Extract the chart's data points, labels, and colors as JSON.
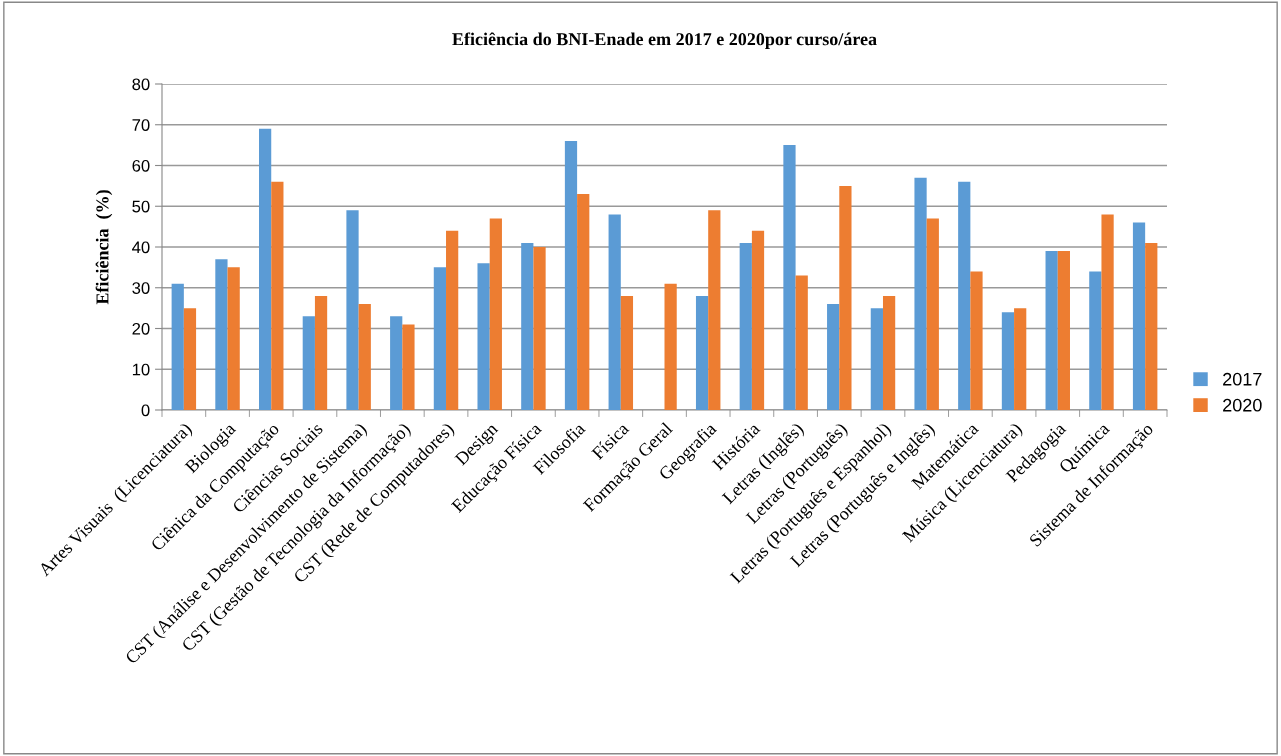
{
  "chart_data": {
    "type": "bar",
    "title": "Eficiência do BNI-Enade em 2017 e 2020por curso/área",
    "ylabel": "Eficiência  (%)",
    "categories": [
      "Artes Visuais  (Licenciatura)",
      "Biologia",
      "Ciênica da Computação",
      "Ciências Sociais",
      "CST (Análise e Desenvolvimento de Sistema)",
      "CST (Gestão de Tecnologia da Informação)",
      "CST (Rede de Computadores)",
      "Design",
      "Educação Física",
      "Filosofia",
      "Física",
      "Formação Geral",
      "Geografia",
      "História",
      "Letras (Inglês)",
      "Letras (Português)",
      "Letras (Português e Espanhol)",
      "Letras (Português e Inglês)",
      "Matemática",
      "Música (Licenciatura)",
      "Pedagogia",
      "Química",
      "Sistema de Informação"
    ],
    "series": [
      {
        "name": "2017",
        "color": "#5b9bd5",
        "values": [
          31,
          37,
          69,
          23,
          49,
          23,
          35,
          36,
          41,
          66,
          48,
          0,
          28,
          41,
          65,
          26,
          25,
          57,
          56,
          24,
          39,
          34,
          46
        ]
      },
      {
        "name": "2020",
        "color": "#ed7d31",
        "values": [
          25,
          35,
          56,
          28,
          26,
          21,
          44,
          47,
          40,
          53,
          28,
          31,
          49,
          44,
          33,
          55,
          28,
          47,
          34,
          25,
          39,
          48,
          41
        ]
      }
    ],
    "ylim": [
      0,
      80
    ],
    "yticks": [
      0,
      10,
      20,
      30,
      40,
      50,
      60,
      70,
      80
    ],
    "grid": "y",
    "legend": "right"
  }
}
